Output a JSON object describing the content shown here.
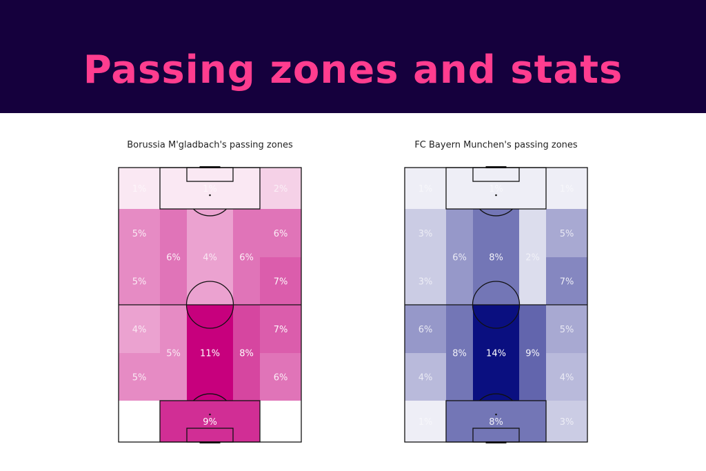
{
  "header": {
    "title": "Passing zones and stats"
  },
  "chart_data": [
    {
      "type": "heatmap",
      "title": "Borussia M'gladbach's passing zones",
      "base_color": "#c7007d",
      "max_value": 11,
      "zones": [
        {
          "zone": "left-final",
          "value": 1,
          "label": "1%"
        },
        {
          "zone": "box-final",
          "value": 1,
          "label": "1%"
        },
        {
          "zone": "right-final",
          "value": 2,
          "label": "2%"
        },
        {
          "zone": "left-att-upper",
          "value": 5,
          "label": "5%"
        },
        {
          "zone": "left-att-lower",
          "value": 5,
          "label": "5%"
        },
        {
          "zone": "halfspace-left-att",
          "value": 6,
          "label": "6%"
        },
        {
          "zone": "centre-att",
          "value": 4,
          "label": "4%"
        },
        {
          "zone": "halfspace-right-att",
          "value": 6,
          "label": "6%"
        },
        {
          "zone": "right-att-upper",
          "value": 6,
          "label": "6%"
        },
        {
          "zone": "right-att-lower",
          "value": 7,
          "label": "7%"
        },
        {
          "zone": "left-def-upper",
          "value": 4,
          "label": "4%"
        },
        {
          "zone": "left-def-lower",
          "value": 5,
          "label": "5%"
        },
        {
          "zone": "halfspace-left-def",
          "value": 5,
          "label": "5%"
        },
        {
          "zone": "centre-def",
          "value": 11,
          "label": "11%"
        },
        {
          "zone": "halfspace-right-def",
          "value": 8,
          "label": "8%"
        },
        {
          "zone": "right-def-upper",
          "value": 7,
          "label": "7%"
        },
        {
          "zone": "right-def-lower",
          "value": 6,
          "label": "6%"
        },
        {
          "zone": "left-own",
          "value": 0,
          "label": "0%"
        },
        {
          "zone": "box-own",
          "value": 9,
          "label": "9%"
        },
        {
          "zone": "right-own",
          "value": 0,
          "label": "0%"
        }
      ]
    },
    {
      "type": "heatmap",
      "title": "FC Bayern Munchen's passing zones",
      "base_color": "#0a0f80",
      "max_value": 14,
      "zones": [
        {
          "zone": "left-final",
          "value": 1,
          "label": "1%"
        },
        {
          "zone": "box-final",
          "value": 1,
          "label": "1%"
        },
        {
          "zone": "right-final",
          "value": 1,
          "label": "1%"
        },
        {
          "zone": "left-att-upper",
          "value": 3,
          "label": "3%"
        },
        {
          "zone": "left-att-lower",
          "value": 3,
          "label": "3%"
        },
        {
          "zone": "halfspace-left-att",
          "value": 6,
          "label": "6%"
        },
        {
          "zone": "centre-att",
          "value": 8,
          "label": "8%"
        },
        {
          "zone": "halfspace-right-att",
          "value": 2,
          "label": "2%"
        },
        {
          "zone": "right-att-upper",
          "value": 5,
          "label": "5%"
        },
        {
          "zone": "right-att-lower",
          "value": 7,
          "label": "7%"
        },
        {
          "zone": "left-def-upper",
          "value": 6,
          "label": "6%"
        },
        {
          "zone": "left-def-lower",
          "value": 4,
          "label": "4%"
        },
        {
          "zone": "halfspace-left-def",
          "value": 8,
          "label": "8%"
        },
        {
          "zone": "centre-def",
          "value": 14,
          "label": "14%"
        },
        {
          "zone": "halfspace-right-def",
          "value": 9,
          "label": "9%"
        },
        {
          "zone": "right-def-upper",
          "value": 5,
          "label": "5%"
        },
        {
          "zone": "right-def-lower",
          "value": 4,
          "label": "4%"
        },
        {
          "zone": "left-own",
          "value": 1,
          "label": "1%"
        },
        {
          "zone": "box-own",
          "value": 8,
          "label": "8%"
        },
        {
          "zone": "right-own",
          "value": 3,
          "label": "3%"
        }
      ]
    }
  ]
}
